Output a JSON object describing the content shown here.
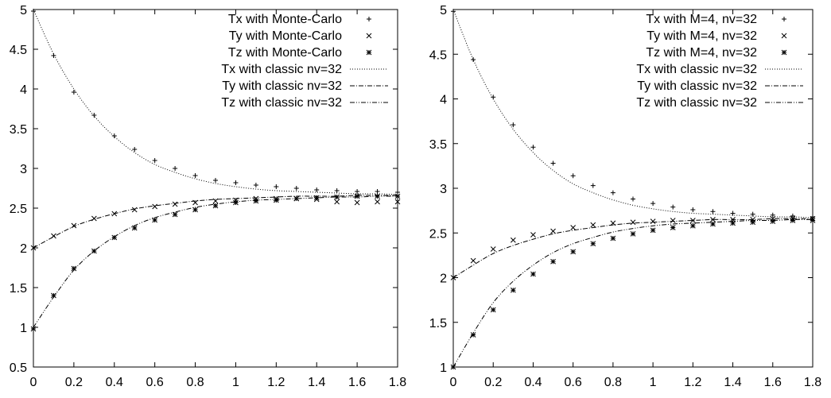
{
  "chart_data": [
    {
      "type": "line",
      "title": "",
      "xlabel": "",
      "ylabel": "",
      "xlim": [
        0,
        1.8
      ],
      "ylim": [
        0.5,
        5
      ],
      "x_ticks": [
        "0",
        "0.2",
        "0.4",
        "0.6",
        "0.8",
        "1",
        "1.2",
        "1.4",
        "1.6",
        "1.8"
      ],
      "y_ticks": [
        "0.5",
        "1",
        "1.5",
        "2",
        "2.5",
        "3",
        "3.5",
        "4",
        "4.5",
        "5"
      ],
      "legend_position": "top-right",
      "grid": false,
      "x": [
        0,
        0.1,
        0.2,
        0.3,
        0.4,
        0.5,
        0.6,
        0.7,
        0.8,
        0.9,
        1.0,
        1.1,
        1.2,
        1.3,
        1.4,
        1.5,
        1.6,
        1.7,
        1.8
      ],
      "series": [
        {
          "name": "Tx with Monte-Carlo",
          "style": "points",
          "marker": "plus",
          "values": [
            4.98,
            4.42,
            3.96,
            3.67,
            3.41,
            3.24,
            3.1,
            3.0,
            2.91,
            2.85,
            2.82,
            2.79,
            2.77,
            2.75,
            2.73,
            2.72,
            2.71,
            2.71,
            2.7
          ]
        },
        {
          "name": "Ty with Monte-Carlo",
          "style": "points",
          "marker": "cross",
          "values": [
            2.0,
            2.15,
            2.28,
            2.37,
            2.43,
            2.48,
            2.52,
            2.55,
            2.57,
            2.59,
            2.6,
            2.62,
            2.62,
            2.62,
            2.61,
            2.58,
            2.57,
            2.58,
            2.58
          ]
        },
        {
          "name": "Tz with Monte-Carlo",
          "style": "points",
          "marker": "star",
          "values": [
            0.98,
            1.4,
            1.74,
            1.96,
            2.13,
            2.25,
            2.35,
            2.42,
            2.48,
            2.53,
            2.57,
            2.59,
            2.6,
            2.62,
            2.63,
            2.64,
            2.65,
            2.65,
            2.65
          ]
        },
        {
          "name": "Tx with classic nv=32",
          "style": "line",
          "dash": "1,2",
          "values": [
            5.0,
            4.44,
            4.0,
            3.66,
            3.4,
            3.2,
            3.05,
            2.95,
            2.87,
            2.81,
            2.77,
            2.74,
            2.72,
            2.71,
            2.7,
            2.69,
            2.68,
            2.68,
            2.67
          ]
        },
        {
          "name": "Ty with classic nv=32",
          "style": "line",
          "dash": "6,2,1,2",
          "values": [
            2.0,
            2.14,
            2.27,
            2.36,
            2.43,
            2.49,
            2.53,
            2.56,
            2.59,
            2.61,
            2.62,
            2.63,
            2.64,
            2.65,
            2.65,
            2.65,
            2.66,
            2.66,
            2.66
          ]
        },
        {
          "name": "Tz with classic nv=32",
          "style": "line",
          "dash": "6,2,1,2,1,2",
          "values": [
            1.0,
            1.38,
            1.72,
            1.96,
            2.14,
            2.28,
            2.38,
            2.45,
            2.51,
            2.55,
            2.58,
            2.6,
            2.61,
            2.62,
            2.63,
            2.64,
            2.64,
            2.65,
            2.65
          ]
        }
      ]
    },
    {
      "type": "line",
      "title": "",
      "xlabel": "",
      "ylabel": "",
      "xlim": [
        0,
        1.8
      ],
      "ylim": [
        1,
        5
      ],
      "x_ticks": [
        "0",
        "0.2",
        "0.4",
        "0.6",
        "0.8",
        "1",
        "1.2",
        "1.4",
        "1.6",
        "1.8"
      ],
      "y_ticks": [
        "1",
        "1.5",
        "2",
        "2.5",
        "3",
        "3.5",
        "4",
        "4.5",
        "5"
      ],
      "legend_position": "top-right",
      "grid": false,
      "x": [
        0,
        0.1,
        0.2,
        0.3,
        0.4,
        0.5,
        0.6,
        0.7,
        0.8,
        0.9,
        1.0,
        1.1,
        1.2,
        1.3,
        1.4,
        1.5,
        1.6,
        1.7,
        1.8
      ],
      "series": [
        {
          "name": "Tx with M=4, nv=32",
          "style": "points",
          "marker": "plus",
          "values": [
            4.98,
            4.44,
            4.02,
            3.71,
            3.46,
            3.28,
            3.14,
            3.03,
            2.95,
            2.88,
            2.83,
            2.79,
            2.76,
            2.74,
            2.72,
            2.71,
            2.7,
            2.69,
            2.68
          ]
        },
        {
          "name": "Ty with M=4, nv=32",
          "style": "points",
          "marker": "cross",
          "values": [
            2.0,
            2.19,
            2.32,
            2.42,
            2.48,
            2.52,
            2.56,
            2.59,
            2.61,
            2.62,
            2.63,
            2.64,
            2.64,
            2.65,
            2.65,
            2.65,
            2.66,
            2.66,
            2.66
          ]
        },
        {
          "name": "Tz with M=4, nv=32",
          "style": "points",
          "marker": "star",
          "values": [
            1.0,
            1.36,
            1.64,
            1.86,
            2.04,
            2.18,
            2.29,
            2.38,
            2.44,
            2.49,
            2.53,
            2.56,
            2.58,
            2.6,
            2.61,
            2.62,
            2.63,
            2.64,
            2.64
          ]
        },
        {
          "name": "Tx with classic nv=32",
          "style": "line",
          "dash": "1,2",
          "values": [
            5.0,
            4.44,
            4.0,
            3.66,
            3.4,
            3.2,
            3.05,
            2.95,
            2.87,
            2.81,
            2.77,
            2.74,
            2.72,
            2.71,
            2.7,
            2.69,
            2.68,
            2.68,
            2.67
          ]
        },
        {
          "name": "Ty with classic nv=32",
          "style": "line",
          "dash": "6,2,1,2",
          "values": [
            2.0,
            2.14,
            2.27,
            2.36,
            2.43,
            2.49,
            2.53,
            2.56,
            2.59,
            2.61,
            2.62,
            2.63,
            2.64,
            2.65,
            2.65,
            2.65,
            2.66,
            2.66,
            2.66
          ]
        },
        {
          "name": "Tz with classic nv=32",
          "style": "line",
          "dash": "6,2,1,2,1,2",
          "values": [
            1.0,
            1.38,
            1.72,
            1.96,
            2.14,
            2.28,
            2.38,
            2.45,
            2.51,
            2.55,
            2.58,
            2.6,
            2.61,
            2.62,
            2.63,
            2.64,
            2.64,
            2.65,
            2.65
          ]
        }
      ]
    }
  ]
}
